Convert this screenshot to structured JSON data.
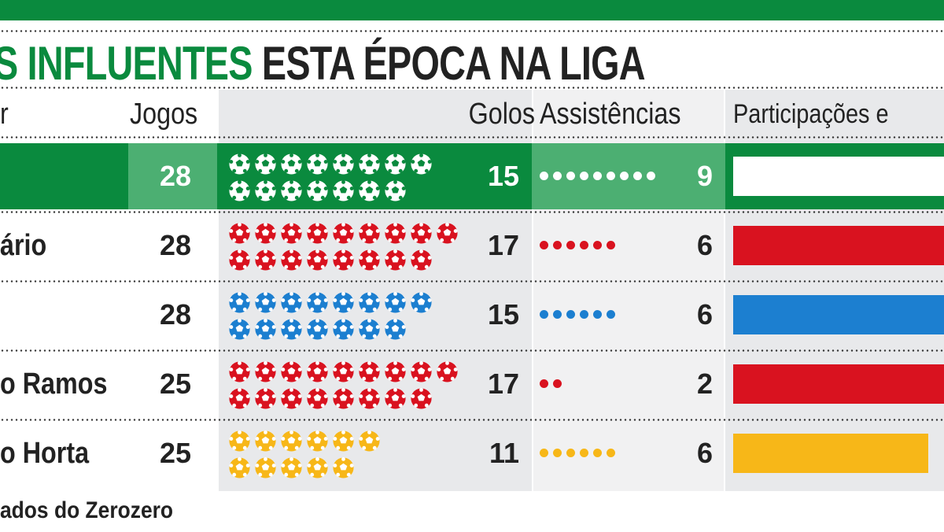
{
  "title": {
    "green": "S INFLUENTES",
    "black": "ESTA ÉPOCA NA LIGA"
  },
  "headers": {
    "player": "r",
    "games": "Jogos",
    "goals": "Golos",
    "assists": "Assistências",
    "participations": "Participações e"
  },
  "footer": "ados do Zerozero",
  "colors": {
    "green": "#0a8a3e",
    "light_green": "#4caf72",
    "red": "#d9121f",
    "blue": "#1c7fd0",
    "yellow": "#f7b718"
  },
  "chart_data": {
    "type": "table",
    "title": "S INFLUENTES ESTA ÉPOCA NA LIGA",
    "columns": [
      "r",
      "Jogos",
      "Golos",
      "Assistências",
      "Participações e"
    ],
    "rows": [
      {
        "name": "",
        "games": "28",
        "goals": "15",
        "assists": "9",
        "color": "#ffffff",
        "highlight": true
      },
      {
        "name": "ário",
        "games": "28",
        "goals": "17",
        "assists": "6",
        "color": "#d9121f",
        "highlight": false
      },
      {
        "name": "",
        "games": "28",
        "goals": "15",
        "assists": "6",
        "color": "#1c7fd0",
        "highlight": false
      },
      {
        "name": "o Ramos",
        "games": "25",
        "goals": "17",
        "assists": "2",
        "color": "#d9121f",
        "highlight": false
      },
      {
        "name": "o Horta",
        "games": "25",
        "goals": "11",
        "assists": "6",
        "color": "#f7b718",
        "highlight": false
      }
    ]
  }
}
